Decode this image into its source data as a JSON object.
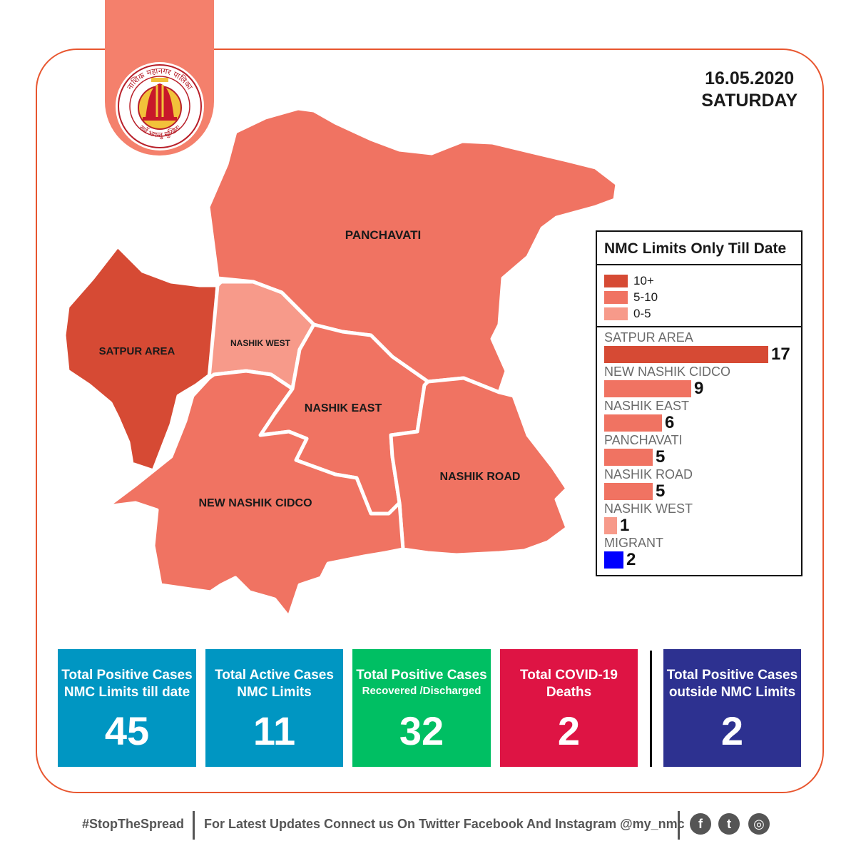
{
  "header": {
    "date": "16.05.2020",
    "day": "SATURDAY"
  },
  "logo": {
    "top_text": "नाशिक महानगर पालिका",
    "bottom_text": "सर्वे भवन्तु सुखिनः"
  },
  "map": {
    "regions": [
      {
        "name": "PANCHAVATI",
        "range": "5-10"
      },
      {
        "name": "SATPUR AREA",
        "range": "10+"
      },
      {
        "name": "NASHIK WEST",
        "range": "0-5"
      },
      {
        "name": "NASHIK EAST",
        "range": "5-10"
      },
      {
        "name": "NASHIK ROAD",
        "range": "5-10"
      },
      {
        "name": "NEW NASHIK CIDCO",
        "range": "5-10"
      }
    ]
  },
  "legend": {
    "title": "NMC Limits Only Till Date",
    "keys": [
      {
        "label": "10+",
        "color": "#d64a34"
      },
      {
        "label": "5-10",
        "color": "#f07362"
      },
      {
        "label": "0-5",
        "color": "#f79a8a"
      }
    ],
    "bars": [
      {
        "name": "SATPUR AREA",
        "value": 17,
        "color": "#d64a34"
      },
      {
        "name": "NEW NASHIK CIDCO",
        "value": 9,
        "color": "#f07362"
      },
      {
        "name": "NASHIK EAST",
        "value": 6,
        "color": "#f07362"
      },
      {
        "name": "PANCHAVATI",
        "value": 5,
        "color": "#f07362"
      },
      {
        "name": "NASHIK ROAD",
        "value": 5,
        "color": "#f07362"
      },
      {
        "name": "NASHIK WEST",
        "value": 1,
        "color": "#f79a8a"
      },
      {
        "name": "MIGRANT",
        "value": 2,
        "color": "#0000ff"
      }
    ]
  },
  "stats": [
    {
      "title": "Total Positive Cases",
      "subtitle": "NMC Limits till date",
      "value": "45",
      "color": "#0096c2"
    },
    {
      "title": "Total Active Cases",
      "subtitle": "NMC Limits",
      "value": "11",
      "color": "#0096c2"
    },
    {
      "title": "Total Positive Cases",
      "subtitle": "Recovered /Discharged",
      "value": "32",
      "color": "#00bf63"
    },
    {
      "title": "Total COVID-19",
      "subtitle": "Deaths",
      "value": "2",
      "color": "#de1444"
    },
    {
      "title": "Total Positive Cases",
      "subtitle": "outside NMC Limits",
      "value": "2",
      "color": "#2d3190"
    }
  ],
  "footer": {
    "hashtag": "#StopTheSpread",
    "updates": "For Latest Updates Connect us On Twitter Facebook And Instagram @my_nmc",
    "social": [
      {
        "icon": "facebook-icon",
        "glyph": "f"
      },
      {
        "icon": "twitter-icon",
        "glyph": "t"
      },
      {
        "icon": "instagram-icon",
        "glyph": "◎"
      }
    ]
  }
}
